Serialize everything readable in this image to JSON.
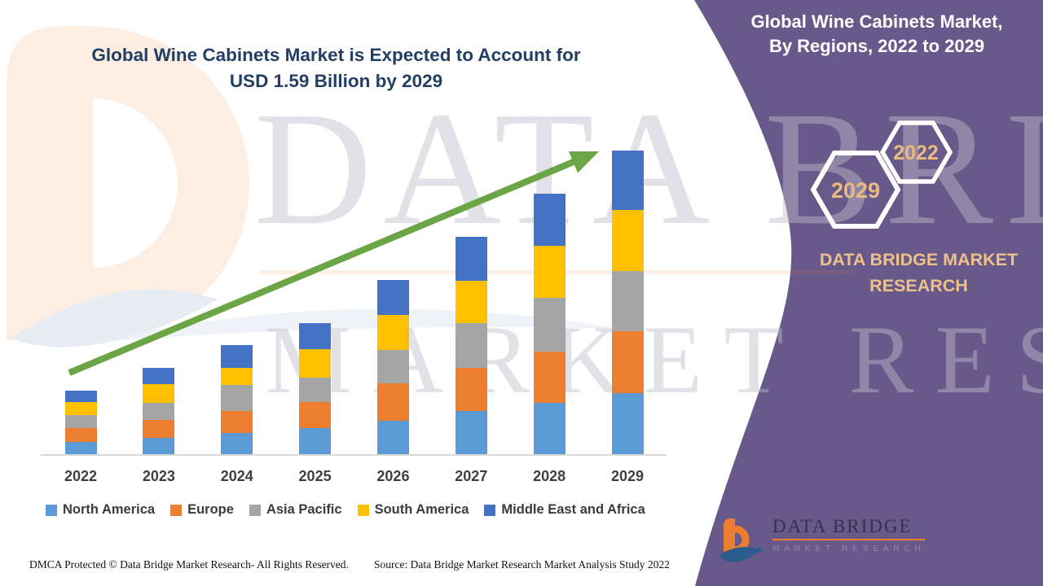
{
  "header": {
    "title_line1": "Global Wine Cabinets Market is Expected to Account for",
    "title_line2": "USD 1.59 Billion by 2029"
  },
  "side_panel": {
    "band_line1": "Global Wine Cabinets Market,",
    "band_line2": "By Regions, 2022 to 2029",
    "hexagon_front_label": "2029",
    "hexagon_back_label": "2022",
    "brand_name": "DATA BRIDGE MARKET RESEARCH",
    "panel_color": "#68598B",
    "accent_text_color": "#EBBA7E"
  },
  "watermark": {
    "line1": "DATA BRIDGE",
    "line2": "MARKET RESEARCH"
  },
  "logo": {
    "name": "DATA BRIDGE",
    "subtitle": "MARKET RESEARCH"
  },
  "footer": {
    "left": "DMCA Protected © Data Bridge Market Research- All Rights Reserved.",
    "source": "Source: Data Bridge Market Research Market Analysis Study 2022"
  },
  "chart_data": {
    "type": "bar",
    "stacked": true,
    "title": "Global Wine Cabinets Market is Expected to Account for USD 1.59 Billion by 2029",
    "unit": "USD Billion",
    "categories": [
      "2022",
      "2023",
      "2024",
      "2025",
      "2026",
      "2027",
      "2028",
      "2029"
    ],
    "series": [
      {
        "name": "North America",
        "color": "#5B9BD5",
        "values": [
          0.064,
          0.085,
          0.111,
          0.136,
          0.175,
          0.226,
          0.269,
          0.32
        ]
      },
      {
        "name": "Europe",
        "color": "#ED7D31",
        "values": [
          0.072,
          0.094,
          0.115,
          0.136,
          0.196,
          0.226,
          0.269,
          0.324
        ]
      },
      {
        "name": "Asia Pacific",
        "color": "#A5A5A5",
        "values": [
          0.068,
          0.09,
          0.136,
          0.128,
          0.175,
          0.234,
          0.281,
          0.315
        ]
      },
      {
        "name": "South America",
        "color": "#FFC000",
        "values": [
          0.068,
          0.098,
          0.09,
          0.149,
          0.183,
          0.222,
          0.273,
          0.32
        ]
      },
      {
        "name": "Middle East and Africa",
        "color": "#4472C4",
        "values": [
          0.06,
          0.085,
          0.119,
          0.136,
          0.183,
          0.23,
          0.273,
          0.311
        ]
      }
    ],
    "estimated_totals": [
      0.33,
      0.45,
      0.57,
      0.69,
      0.91,
      1.14,
      1.37,
      1.59
    ],
    "trend_arrow": true,
    "legend_position": "bottom",
    "axes": {
      "x_label": "",
      "y_label": "",
      "y_axis_visible": false,
      "gridlines": false
    }
  }
}
